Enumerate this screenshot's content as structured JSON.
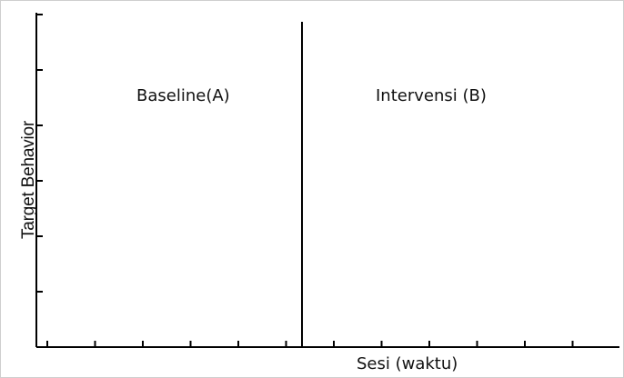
{
  "chart_data": {
    "type": "line",
    "title": "",
    "xlabel": "Sesi (waktu)",
    "ylabel": "Target Behavior",
    "y_tick_count": 6,
    "x_tick_count": 12,
    "grid": false,
    "phases": [
      {
        "label": "Baseline(A)"
      },
      {
        "label": "Intervensi (B)"
      }
    ],
    "phase_change_after_tick": 5,
    "series": [],
    "colors": {
      "axis": "#000000",
      "text": "#111111",
      "frame": "#cfcfcf"
    }
  }
}
